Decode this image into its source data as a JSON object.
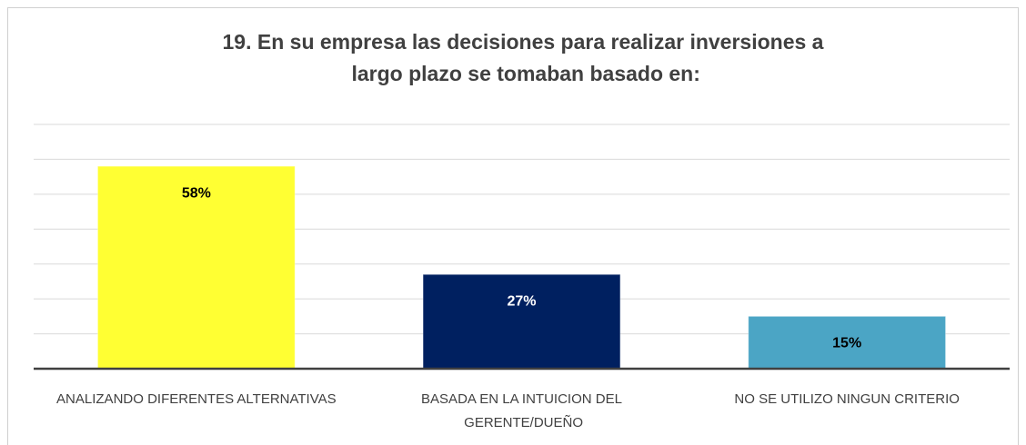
{
  "chart_data": {
    "type": "bar",
    "title": "19. En su empresa las decisiones para realizar inversiones a largo plazo se tomaban basado en:",
    "categories": [
      "ANALIZANDO DIFERENTES ALTERNATIVAS",
      "BASADA EN LA INTUICION DEL GERENTE/DUEÑO",
      "NO SE UTILIZO NINGUN CRITERIO"
    ],
    "values": [
      58,
      27,
      15
    ],
    "value_labels": [
      "58%",
      "27%",
      "15%"
    ],
    "colors": [
      "#ffff33",
      "#002060",
      "#4ba5c5"
    ],
    "ylim": [
      0,
      70
    ],
    "yticks": [
      0,
      10,
      20,
      30,
      40,
      50,
      60,
      70
    ],
    "grid": true
  }
}
